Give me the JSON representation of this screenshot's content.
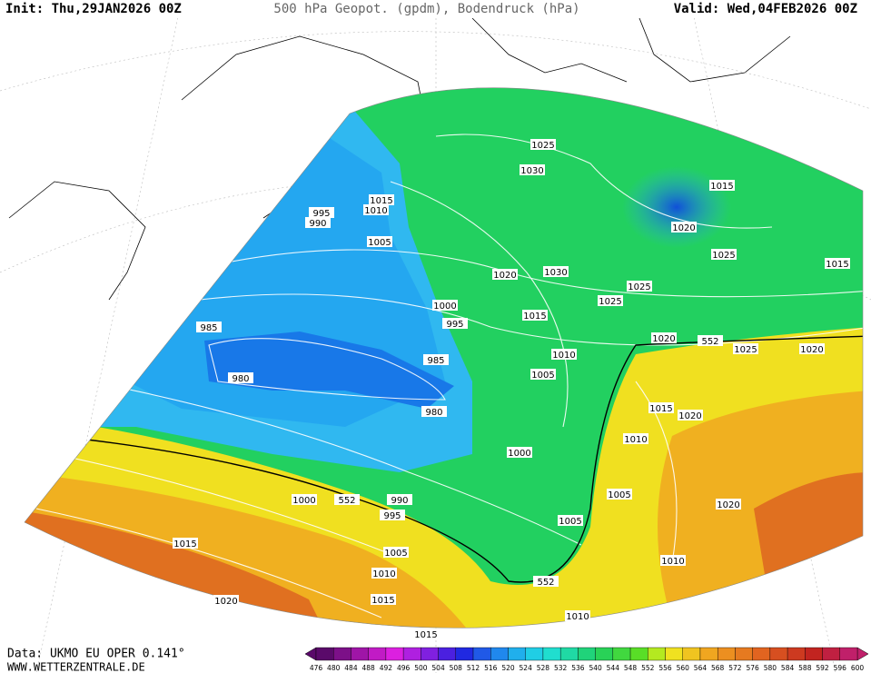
{
  "header": {
    "init": "Init: Thu,29JAN2026 00Z",
    "title": "500 hPa Geopot. (gpdm), Bodendruck (hPa)",
    "valid": "Valid: Wed,04FEB2026 00Z"
  },
  "isobar_labels": [
    "1025",
    "1030",
    "1015",
    "1010",
    "995",
    "990",
    "1005",
    "1015",
    "1020",
    "1020",
    "1030",
    "1025",
    "1015",
    "1000",
    "1025",
    "1025",
    "1015",
    "995",
    "985",
    "1020",
    "552",
    "1025",
    "1020",
    "1010",
    "985",
    "980",
    "1005",
    "980",
    "1015",
    "1020",
    "1010",
    "1000",
    "1000",
    "552",
    "990",
    "1005",
    "1020",
    "995",
    "1005",
    "1015",
    "1005",
    "1010",
    "1010",
    "552",
    "1015",
    "1020",
    "1010",
    "1015"
  ],
  "footer": {
    "data": "Data: UKMO EU OPER 0.141°",
    "url": "WWW.WETTERZENTRALE.DE"
  },
  "colorbar": {
    "ticks": [
      476,
      480,
      484,
      488,
      492,
      496,
      500,
      504,
      508,
      512,
      516,
      520,
      524,
      528,
      532,
      536,
      540,
      544,
      548,
      552,
      556,
      560,
      564,
      568,
      572,
      576,
      580,
      584,
      588,
      592,
      596,
      600
    ]
  }
}
